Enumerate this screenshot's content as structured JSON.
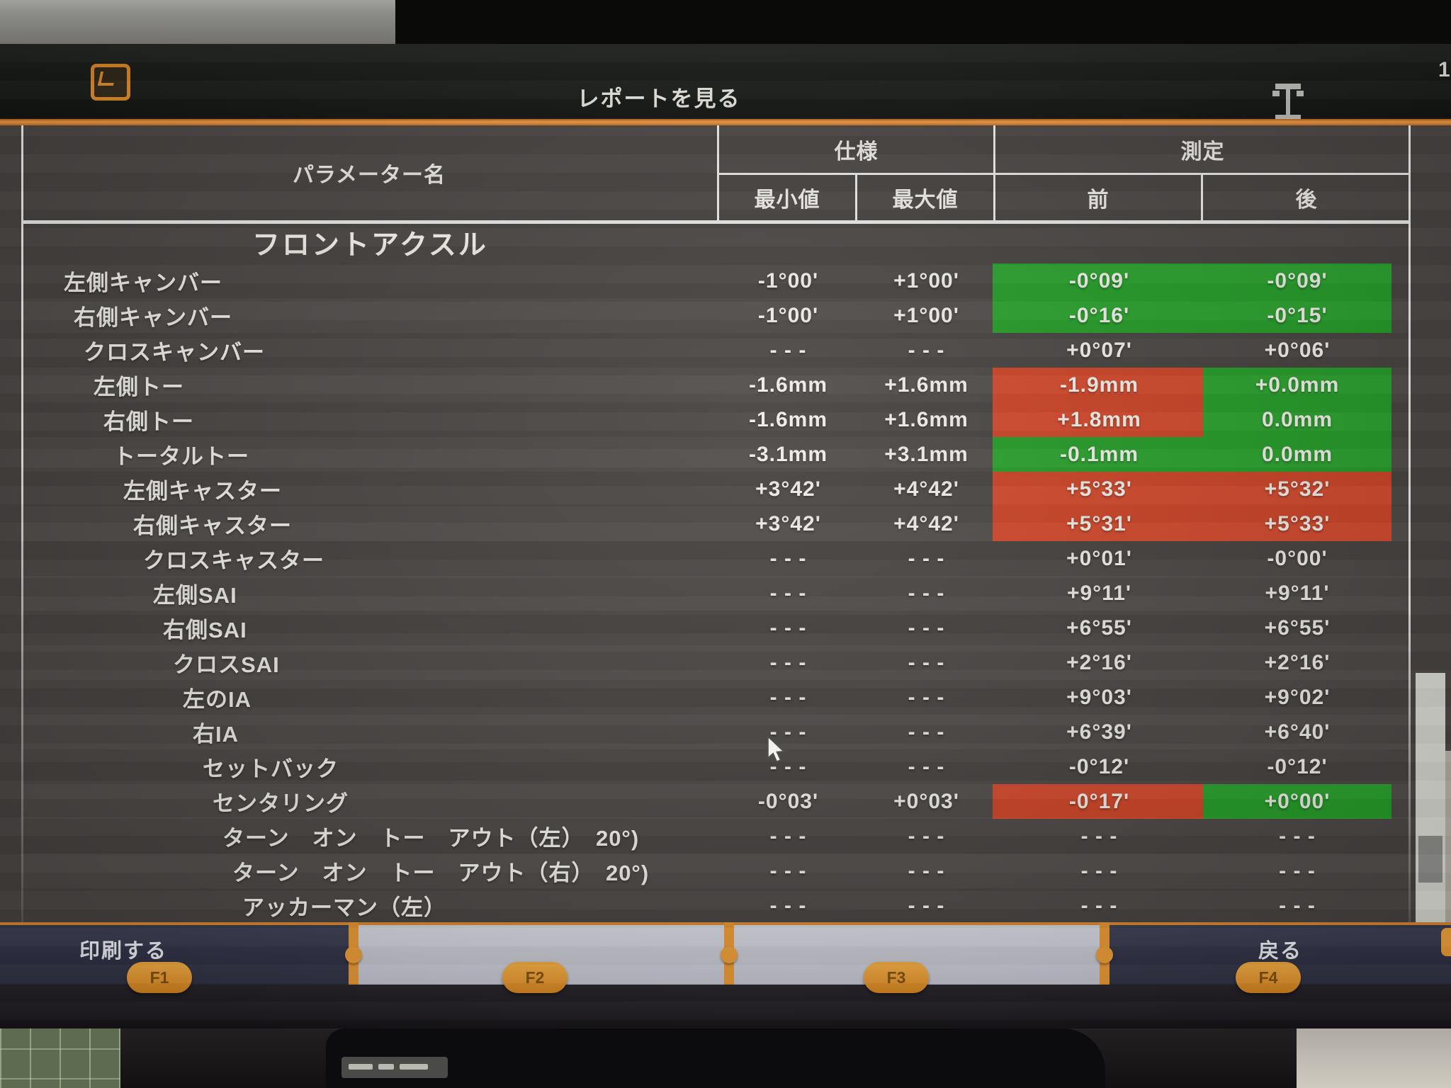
{
  "title_bar": {
    "title": "レポートを見る",
    "corner_text": "1"
  },
  "table": {
    "param_header": "パラメーター名",
    "spec_header": "仕様",
    "meas_header": "測定",
    "min_header": "最小値",
    "max_header": "最大値",
    "before_header": "前",
    "after_header": "後",
    "section_title": "フロントアクスル",
    "rows": [
      {
        "name": "左側キャンバー",
        "min": "-1°00'",
        "max": "+1°00'",
        "before": "-0°09'",
        "after": "-0°09'",
        "before_status": "ok",
        "after_status": "ok"
      },
      {
        "name": "右側キャンバー",
        "min": "-1°00'",
        "max": "+1°00'",
        "before": "-0°16'",
        "after": "-0°15'",
        "before_status": "ok",
        "after_status": "ok"
      },
      {
        "name": "クロスキャンバー",
        "min": "- - -",
        "max": "- - -",
        "before": "+0°07'",
        "after": "+0°06'",
        "before_status": "none",
        "after_status": "none"
      },
      {
        "name": "左側トー",
        "min": "-1.6mm",
        "max": "+1.6mm",
        "before": "-1.9mm",
        "after": "+0.0mm",
        "before_status": "ng",
        "after_status": "ok"
      },
      {
        "name": "右側トー",
        "min": "-1.6mm",
        "max": "+1.6mm",
        "before": "+1.8mm",
        "after": "0.0mm",
        "before_status": "ng",
        "after_status": "ok"
      },
      {
        "name": "トータルトー",
        "min": "-3.1mm",
        "max": "+3.1mm",
        "before": "-0.1mm",
        "after": "0.0mm",
        "before_status": "ok",
        "after_status": "ok"
      },
      {
        "name": "左側キャスター",
        "min": "+3°42'",
        "max": "+4°42'",
        "before": "+5°33'",
        "after": "+5°32'",
        "before_status": "ng",
        "after_status": "ng"
      },
      {
        "name": "右側キャスター",
        "min": "+3°42'",
        "max": "+4°42'",
        "before": "+5°31'",
        "after": "+5°33'",
        "before_status": "ng",
        "after_status": "ng"
      },
      {
        "name": "クロスキャスター",
        "min": "- - -",
        "max": "- - -",
        "before": "+0°01'",
        "after": "-0°00'",
        "before_status": "none",
        "after_status": "none"
      },
      {
        "name": "左側SAI",
        "min": "- - -",
        "max": "- - -",
        "before": "+9°11'",
        "after": "+9°11'",
        "before_status": "none",
        "after_status": "none"
      },
      {
        "name": "右側SAI",
        "min": "- - -",
        "max": "- - -",
        "before": "+6°55'",
        "after": "+6°55'",
        "before_status": "none",
        "after_status": "none"
      },
      {
        "name": "クロスSAI",
        "min": "- - -",
        "max": "- - -",
        "before": "+2°16'",
        "after": "+2°16'",
        "before_status": "none",
        "after_status": "none"
      },
      {
        "name": "左のIA",
        "min": "- - -",
        "max": "- - -",
        "before": "+9°03'",
        "after": "+9°02'",
        "before_status": "none",
        "after_status": "none"
      },
      {
        "name": "右IA",
        "min": "- - -",
        "max": "- - -",
        "before": "+6°39'",
        "after": "+6°40'",
        "before_status": "none",
        "after_status": "none"
      },
      {
        "name": "セットバック",
        "min": "- - -",
        "max": "- - -",
        "before": "-0°12'",
        "after": "-0°12'",
        "before_status": "none",
        "after_status": "none"
      },
      {
        "name": "センタリング",
        "min": "-0°03'",
        "max": "+0°03'",
        "before": "-0°17'",
        "after": "+0°00'",
        "before_status": "ng",
        "after_status": "ok"
      },
      {
        "name": "ターン　オン　トー　アウト（左）　20°)",
        "min": "- - -",
        "max": "- - -",
        "before": "- - -",
        "after": "- - -",
        "before_status": "none",
        "after_status": "none"
      },
      {
        "name": "ターン　オン　トー　アウト（右）　20°)",
        "min": "- - -",
        "max": "- - -",
        "before": "- - -",
        "after": "- - -",
        "before_status": "none",
        "after_status": "none"
      },
      {
        "name": "アッカーマン（左）",
        "min": "- - -",
        "max": "- - -",
        "before": "- - -",
        "after": "- - -",
        "before_status": "none",
        "after_status": "none"
      }
    ]
  },
  "footer": {
    "print_label": "印刷する",
    "back_label": "戻る",
    "f1": "F1",
    "f2": "F2",
    "f3": "F3",
    "f4": "F4"
  },
  "colors": {
    "ok_green": "#259e28",
    "ng_red": "#cf4527",
    "accent_orange": "#e5942f",
    "footer_dark": "#333549",
    "footer_light": "#c9cad3",
    "screen_gray": "#474341"
  }
}
